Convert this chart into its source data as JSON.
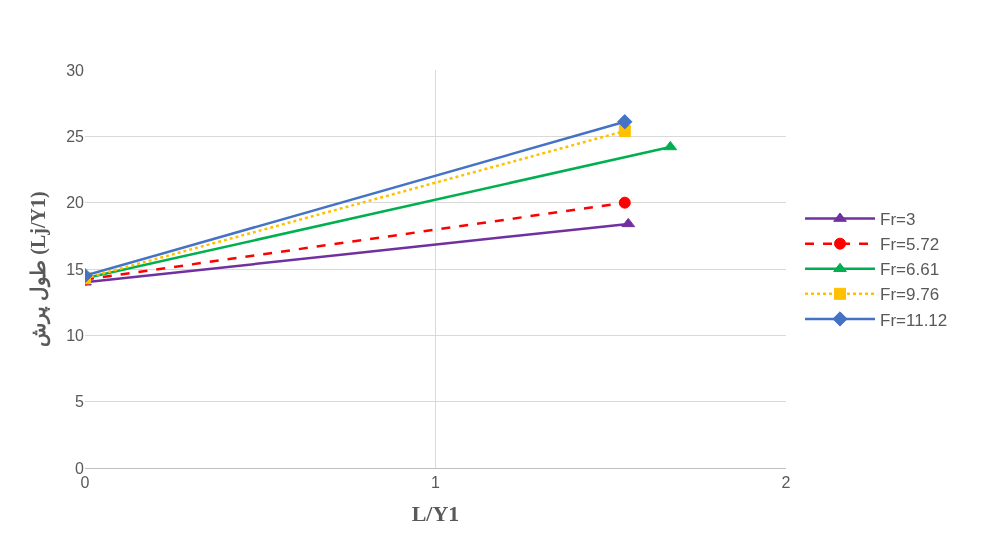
{
  "chart_data": {
    "type": "line",
    "xlabel": "L/Y1",
    "ylabel": "طول پرش (Lj/Y1)",
    "xlim": [
      0,
      2
    ],
    "xticks": [
      0,
      1,
      2
    ],
    "ylim": [
      0,
      30
    ],
    "yticks": [
      0,
      5,
      10,
      15,
      20,
      25,
      30
    ],
    "grid": true,
    "legend": "right",
    "series": [
      {
        "name": "Fr=3",
        "color": "#7030a0",
        "x": [
          0,
          1.55
        ],
        "values": [
          14.0,
          18.4
        ],
        "marker": "triangle",
        "line_style": "solid"
      },
      {
        "name": "Fr=5.72",
        "color": "#ff0000",
        "x": [
          0,
          1.54
        ],
        "values": [
          14.2,
          20.0
        ],
        "marker": "circle",
        "line_style": "dashed"
      },
      {
        "name": "Fr=6.61",
        "color": "#00b050",
        "x": [
          0,
          1.67
        ],
        "values": [
          14.3,
          24.2
        ],
        "marker": "triangle",
        "line_style": "solid"
      },
      {
        "name": "Fr=9.76",
        "color": "#ffc000",
        "x": [
          0,
          1.54
        ],
        "values": [
          14.3,
          25.4
        ],
        "marker": "square",
        "line_style": "dotted"
      },
      {
        "name": "Fr=11.12",
        "color": "#4472c4",
        "x": [
          0,
          1.54
        ],
        "values": [
          14.5,
          26.1
        ],
        "marker": "diamond",
        "line_style": "solid"
      }
    ]
  }
}
